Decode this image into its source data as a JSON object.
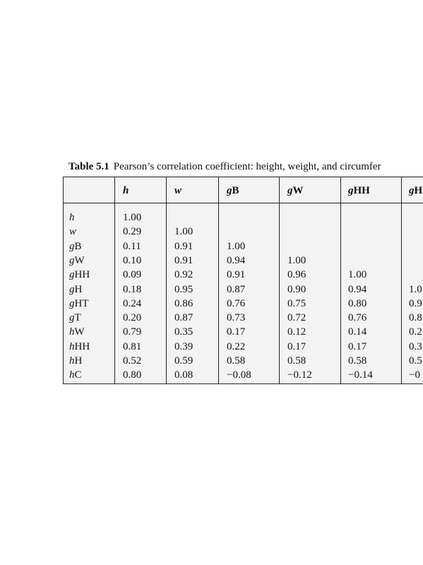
{
  "table": {
    "caption_label": "Table 5.1",
    "caption": "Pearson’s correlation coefficient: height, weight, and circumfer",
    "columns": [
      "h",
      "w",
      "gB",
      "gW",
      "gHH",
      "gH"
    ],
    "rows": [
      {
        "label": "h",
        "values": [
          "1.00"
        ]
      },
      {
        "label": "w",
        "values": [
          "0.29",
          "1.00"
        ]
      },
      {
        "label": "gB",
        "values": [
          "0.11",
          "0.91",
          "1.00"
        ]
      },
      {
        "label": "gW",
        "values": [
          "0.10",
          "0.91",
          "0.94",
          "1.00"
        ]
      },
      {
        "label": "gHH",
        "values": [
          "0.09",
          "0.92",
          "0.91",
          "0.96",
          "1.00"
        ]
      },
      {
        "label": "gH",
        "values": [
          "0.18",
          "0.95",
          "0.87",
          "0.90",
          "0.94",
          "1.0"
        ]
      },
      {
        "label": "gHT",
        "values": [
          "0.24",
          "0.86",
          "0.76",
          "0.75",
          "0.80",
          "0.9"
        ]
      },
      {
        "label": "gT",
        "values": [
          "0.20",
          "0.87",
          "0.73",
          "0.72",
          "0.76",
          "0.8"
        ]
      },
      {
        "label": "hW",
        "values": [
          "0.79",
          "0.35",
          "0.17",
          "0.12",
          "0.14",
          "0.2"
        ]
      },
      {
        "label": "hHH",
        "values": [
          "0.81",
          "0.39",
          "0.22",
          "0.17",
          "0.17",
          "0.3"
        ]
      },
      {
        "label": "hH",
        "values": [
          "0.52",
          "0.59",
          "0.58",
          "0.58",
          "0.58",
          "0.5"
        ]
      },
      {
        "label": "hC",
        "values": [
          "0.80",
          "0.08",
          "−0.08",
          "−0.12",
          "−0.14",
          "−0"
        ]
      }
    ]
  }
}
